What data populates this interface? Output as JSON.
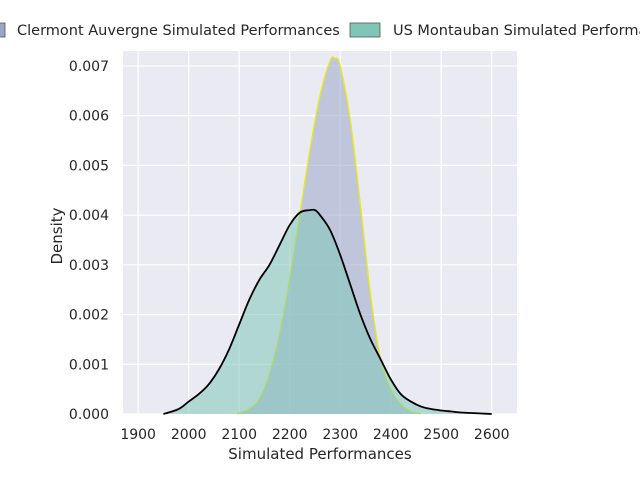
{
  "chart_data": {
    "type": "area",
    "title": "",
    "xlabel": "Simulated Performances",
    "ylabel": "Density",
    "xlim": [
      1870,
      2650
    ],
    "ylim": [
      0,
      0.0073
    ],
    "xticks": [
      1900,
      2000,
      2100,
      2200,
      2300,
      2400,
      2500,
      2600
    ],
    "yticks": [
      0.0,
      0.001,
      0.002,
      0.003,
      0.004,
      0.005,
      0.006,
      0.007
    ],
    "ytick_labels": [
      "0.000",
      "0.001",
      "0.002",
      "0.003",
      "0.004",
      "0.005",
      "0.006",
      "0.007"
    ],
    "grid": true,
    "legend_position": "top",
    "background": "#eaeaf2",
    "series": [
      {
        "name": "Clermont Auvergne Simulated Performances",
        "fill": "#9aa5c9",
        "line": "#e8e81f",
        "x": [
          2095,
          2120,
          2140,
          2160,
          2180,
          2200,
          2220,
          2240,
          2260,
          2280,
          2290,
          2300,
          2320,
          2340,
          2360,
          2380,
          2400,
          2420,
          2440,
          2460
        ],
        "y": [
          0.0,
          0.0001,
          0.0003,
          0.0008,
          0.0016,
          0.0027,
          0.004,
          0.0053,
          0.0064,
          0.0071,
          0.00715,
          0.007,
          0.0059,
          0.0042,
          0.0024,
          0.0011,
          0.0005,
          0.0002,
          5e-05,
          0.0
        ]
      },
      {
        "name": "US Montauban Simulated Performances",
        "fill": "#80c6b6",
        "line": "#000000",
        "x": [
          1950,
          1980,
          2000,
          2020,
          2040,
          2060,
          2080,
          2100,
          2120,
          2140,
          2160,
          2180,
          2200,
          2220,
          2240,
          2250,
          2260,
          2280,
          2300,
          2320,
          2340,
          2360,
          2380,
          2400,
          2420,
          2440,
          2460,
          2480,
          2500,
          2520,
          2540,
          2560,
          2580,
          2600
        ],
        "y": [
          0.0,
          0.0001,
          0.00025,
          0.0004,
          0.0006,
          0.0009,
          0.0013,
          0.0018,
          0.0023,
          0.0027,
          0.003,
          0.0034,
          0.0038,
          0.00405,
          0.0041,
          0.0041,
          0.004,
          0.0037,
          0.0032,
          0.0026,
          0.002,
          0.0015,
          0.0011,
          0.0007,
          0.0004,
          0.00025,
          0.00015,
          0.0001,
          7e-05,
          5e-05,
          3e-05,
          2e-05,
          1e-05,
          0.0
        ]
      }
    ]
  }
}
